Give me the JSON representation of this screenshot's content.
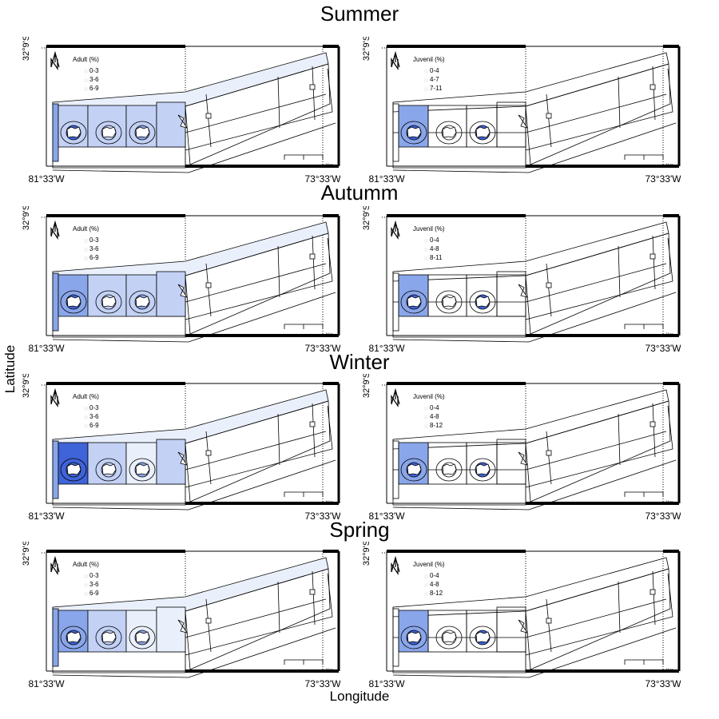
{
  "axes": {
    "xlabel": "Longitude",
    "ylabel": "Latitude"
  },
  "ticks": {
    "lat": "32°9'S",
    "lon_west": "81°33'W",
    "lon_east": "73°33'W"
  },
  "scalebar_unit": "Km",
  "colors": {
    "ramp": [
      "#eaf0fb",
      "#c3d1f5",
      "#8aa6ea",
      "#3f63d8"
    ],
    "outline": "#000000",
    "frame": "#000000"
  },
  "seasons": [
    {
      "name": "Summer",
      "panels": [
        {
          "stage": "Adult (%)",
          "classes": [
            "0-3",
            "3-6",
            "6-9"
          ],
          "cells": {
            "strip_top": 0,
            "strip_left": 2,
            "c1": 1,
            "c2": 1,
            "c3": 1,
            "c4": 1,
            "c5": 1,
            "ring1": 3,
            "ring2": 1,
            "ring3": 2
          }
        },
        {
          "stage": "Juvenil (%)",
          "classes": [
            "0-4",
            "4-7",
            "7-11"
          ],
          "cells": {
            "strip_top": -1,
            "strip_left": -1,
            "c1": 2,
            "c2": -1,
            "c3": -1,
            "c4": -1,
            "c5": -1,
            "ring1": 3,
            "ring2": -1,
            "ring3": 3
          }
        }
      ]
    },
    {
      "name": "Autumm",
      "panels": [
        {
          "stage": "Adult (%)",
          "classes": [
            "0-3",
            "3-6",
            "6-9"
          ],
          "cells": {
            "strip_top": 0,
            "strip_left": 2,
            "c1": 2,
            "c2": 1,
            "c3": 1,
            "c4": 0,
            "c5": 1,
            "ring1": 3,
            "ring2": 1,
            "ring3": 2
          }
        },
        {
          "stage": "Juvenil (%)",
          "classes": [
            "0-4",
            "4-8",
            "8-11"
          ],
          "cells": {
            "strip_top": -1,
            "strip_left": -1,
            "c1": 2,
            "c2": -1,
            "c3": -1,
            "c4": -1,
            "c5": -1,
            "ring1": 3,
            "ring2": -1,
            "ring3": 3
          }
        }
      ]
    },
    {
      "name": "Winter",
      "panels": [
        {
          "stage": "Adult (%)",
          "classes": [
            "0-3",
            "3-6",
            "6-9"
          ],
          "cells": {
            "strip_top": 0,
            "strip_left": 2,
            "c1": 3,
            "c2": 1,
            "c3": 0,
            "c4": 0,
            "c5": 1,
            "ring1": 3,
            "ring2": 1,
            "ring3": 2
          }
        },
        {
          "stage": "Juvenil (%)",
          "classes": [
            "0-4",
            "4-8",
            "8-12"
          ],
          "cells": {
            "strip_top": -1,
            "strip_left": -1,
            "c1": 2,
            "c2": -1,
            "c3": -1,
            "c4": -1,
            "c5": -1,
            "ring1": 3,
            "ring2": -1,
            "ring3": 3
          }
        }
      ]
    },
    {
      "name": "Spring",
      "panels": [
        {
          "stage": "Adult (%)",
          "classes": [
            "0-3",
            "3-6",
            "6-9"
          ],
          "cells": {
            "strip_top": 0,
            "strip_left": 2,
            "c1": 2,
            "c2": 1,
            "c3": 0,
            "c4": 0,
            "c5": 0,
            "ring1": 3,
            "ring2": 1,
            "ring3": 2
          }
        },
        {
          "stage": "Juvenil (%)",
          "classes": [
            "0-4",
            "4-8",
            "8-12"
          ],
          "cells": {
            "strip_top": -1,
            "strip_left": -1,
            "c1": 2,
            "c2": -1,
            "c3": -1,
            "c4": -1,
            "c5": -1,
            "ring1": 3,
            "ring2": -1,
            "ring3": 3
          }
        }
      ]
    }
  ]
}
